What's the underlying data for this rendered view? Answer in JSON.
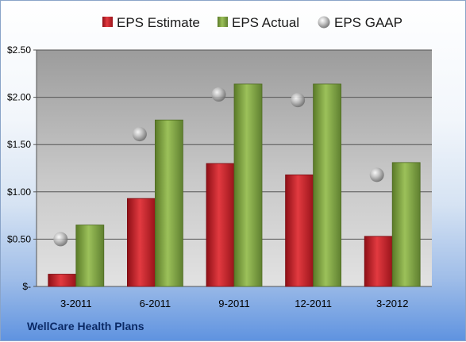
{
  "chart_data": {
    "type": "bar",
    "categories": [
      "3-2011",
      "6-2011",
      "9-2011",
      "12-2011",
      "3-2012"
    ],
    "series": [
      {
        "name": "EPS Estimate",
        "kind": "bar",
        "color": "#c0202a",
        "values": [
          0.13,
          0.93,
          1.3,
          1.18,
          0.53
        ]
      },
      {
        "name": "EPS Actual",
        "kind": "bar",
        "color": "#7fa040",
        "values": [
          0.65,
          1.76,
          2.14,
          2.14,
          1.31
        ]
      },
      {
        "name": "EPS GAAP",
        "kind": "marker",
        "color": "#a9a9a9",
        "values": [
          0.5,
          1.61,
          2.03,
          1.97,
          1.18
        ]
      }
    ],
    "y_ticks": [
      "$-",
      "$0.50",
      "$1.00",
      "$1.50",
      "$2.00",
      "$2.50"
    ],
    "ylim": [
      0,
      2.5
    ],
    "grid": true,
    "legend_position": "top",
    "caption": "WellCare Health Plans"
  }
}
